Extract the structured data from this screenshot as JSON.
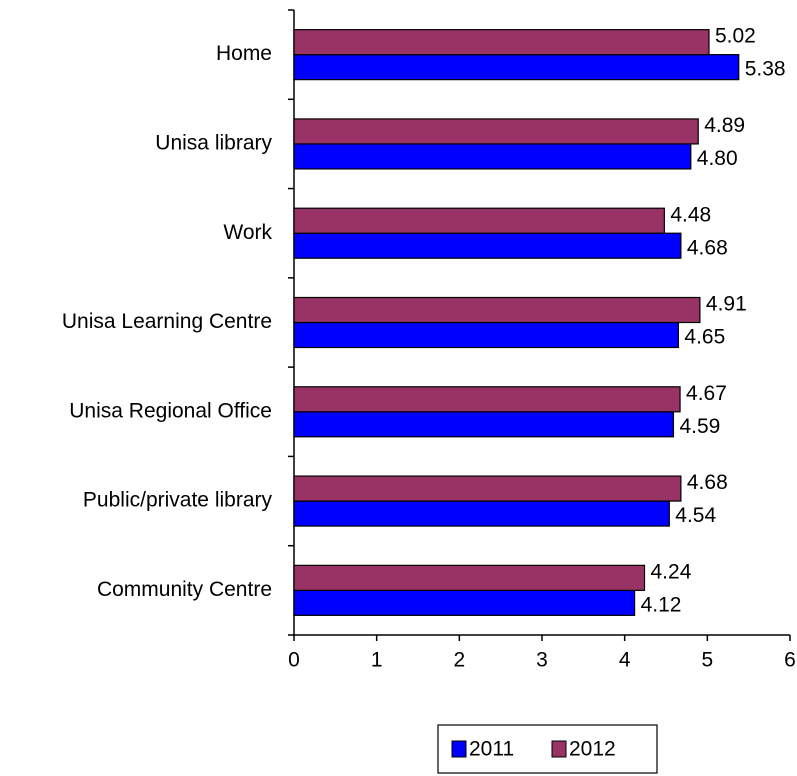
{
  "chart_data": {
    "type": "bar",
    "orientation": "horizontal",
    "categories": [
      "Home",
      "Unisa library",
      "Work",
      "Unisa Learning Centre",
      "Unisa Regional Office",
      "Public/private library",
      "Community Centre"
    ],
    "series": [
      {
        "name": "2011",
        "color": "#0000ff",
        "values": [
          5.38,
          4.8,
          4.68,
          4.65,
          4.59,
          4.54,
          4.12
        ],
        "value_labels": [
          "5.38",
          "4.80",
          "4.68",
          "4.65",
          "4.59",
          "4.54",
          "4.12"
        ]
      },
      {
        "name": "2012",
        "color": "#993366",
        "values": [
          5.02,
          4.89,
          4.48,
          4.91,
          4.67,
          4.68,
          4.24
        ],
        "value_labels": [
          "5.02",
          "4.89",
          "4.48",
          "4.91",
          "4.67",
          "4.68",
          "4.24"
        ]
      }
    ],
    "xlim": [
      0,
      6
    ],
    "xticks": [
      0,
      1,
      2,
      3,
      4,
      5,
      6
    ],
    "legend": "bottom"
  }
}
